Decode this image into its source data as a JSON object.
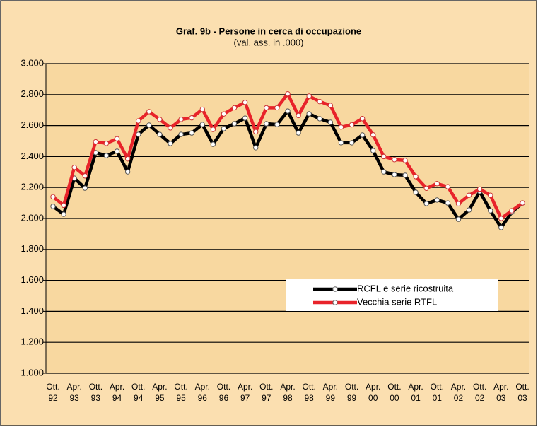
{
  "chart_data": {
    "type": "line",
    "title": "Graf. 9b - Persone in cerca di occupazione",
    "subtitle": "(val. ass. in .000)",
    "categories": [
      "Ott. 92",
      null,
      "Apr. 93",
      null,
      "Ott. 93",
      null,
      "Apr. 94",
      null,
      "Ott. 94",
      null,
      "Apr. 95",
      null,
      "Ott. 95",
      null,
      "Apr. 96",
      null,
      "Ott. 96",
      null,
      "Apr. 97",
      null,
      "Ott. 97",
      null,
      "Apr. 98",
      null,
      "Ott. 98",
      null,
      "Apr. 99",
      null,
      "Ott. 99",
      null,
      "Apr. 00",
      null,
      "Ott. 00",
      null,
      "Apr. 01",
      null,
      "Ott. 01",
      null,
      "Apr. 02",
      null,
      "Ott. 02",
      null,
      "Apr. 03",
      null,
      "Ott. 03"
    ],
    "series": [
      {
        "name": "RCFL e serie ricostruita",
        "color": "#000000",
        "values": [
          2078,
          2027,
          2260,
          2196,
          2425,
          2406,
          2434,
          2301,
          2543,
          2603,
          2543,
          2484,
          2543,
          2552,
          2607,
          2479,
          2580,
          2612,
          2648,
          2457,
          2612,
          2607,
          2694,
          2552,
          2676,
          2644,
          2621,
          2489,
          2489,
          2539,
          2438,
          2301,
          2283,
          2279,
          2169,
          2096,
          2119,
          2100,
          1995,
          2055,
          2174,
          2050,
          1941,
          2040,
          2100
        ]
      },
      {
        "name": "Vecchia serie RTFL",
        "color": "#e8232a",
        "values": [
          2140,
          2085,
          2330,
          2275,
          2495,
          2485,
          2515,
          2385,
          2630,
          2690,
          2640,
          2585,
          2640,
          2650,
          2705,
          2575,
          2675,
          2715,
          2750,
          2560,
          2715,
          2715,
          2805,
          2665,
          2790,
          2755,
          2730,
          2590,
          2605,
          2645,
          2540,
          2400,
          2380,
          2375,
          2270,
          2195,
          2225,
          2205,
          2095,
          2150,
          2190,
          2150,
          2000,
          2050,
          2100
        ]
      }
    ],
    "ylim": [
      1000,
      3000
    ],
    "yticks": [
      {
        "value": 1000,
        "label": "1.000"
      },
      {
        "value": 1200,
        "label": "1.200"
      },
      {
        "value": 1400,
        "label": "1.400"
      },
      {
        "value": 1600,
        "label": "1.600"
      },
      {
        "value": 1800,
        "label": "1.800"
      },
      {
        "value": 2000,
        "label": "2.000"
      },
      {
        "value": 2200,
        "label": "2.200"
      },
      {
        "value": 2400,
        "label": "2.400"
      },
      {
        "value": 2600,
        "label": "2.600"
      },
      {
        "value": 2800,
        "label": "2.800"
      },
      {
        "value": 3000,
        "label": "3.000"
      }
    ],
    "grid": true,
    "legend": "lower right"
  }
}
